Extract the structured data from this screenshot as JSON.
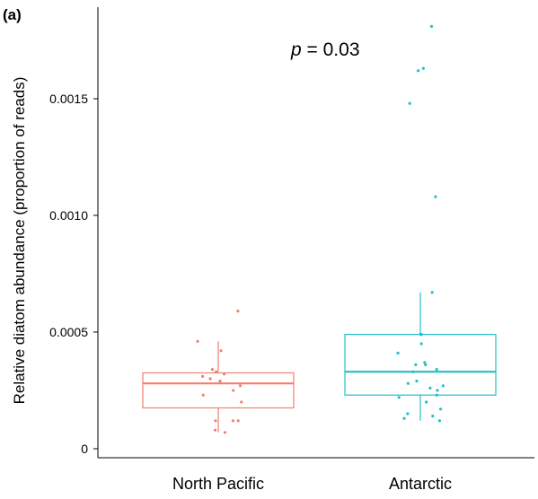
{
  "chart_data": {
    "type": "box",
    "panel_label": "(a)",
    "ylabel": "Relative diatom abundance (proportion of reads)",
    "xlabel": "",
    "ylim": [
      0,
      0.00185
    ],
    "y_ticks": [
      {
        "value": 0,
        "label": "0"
      },
      {
        "value": 0.0005,
        "label": "0.0005"
      },
      {
        "value": 0.001,
        "label": "0.0010"
      },
      {
        "value": 0.0015,
        "label": "0.0015"
      }
    ],
    "annotation": {
      "italic": "p",
      "rest": " = 0.03"
    },
    "groups": [
      {
        "name": "North Pacific",
        "color": "#f08070",
        "q1": 0.000175,
        "median": 0.00028,
        "q3": 0.000325,
        "whisker_low": 7e-05,
        "whisker_high": 0.00046,
        "points": [
          0.00059,
          0.00046,
          0.00042,
          0.00034,
          0.00033,
          0.00032,
          0.00031,
          0.0003,
          0.00029,
          0.00027,
          0.00025,
          0.00023,
          0.0002,
          0.00012,
          0.00012,
          0.00012,
          8e-05,
          7e-05
        ]
      },
      {
        "name": "Antarctic",
        "color": "#20c0c8",
        "q1": 0.00023,
        "median": 0.00033,
        "q3": 0.00049,
        "whisker_low": 0.00012,
        "whisker_high": 0.00067,
        "points": [
          0.00181,
          0.00163,
          0.00162,
          0.00148,
          0.00108,
          0.00067,
          0.00049,
          0.00049,
          0.00045,
          0.00041,
          0.00037,
          0.00036,
          0.00036,
          0.00034,
          0.00033,
          0.00029,
          0.00028,
          0.00027,
          0.00026,
          0.00025,
          0.00023,
          0.00022,
          0.0002,
          0.00017,
          0.00015,
          0.00014,
          0.00013,
          0.00012
        ]
      }
    ]
  }
}
